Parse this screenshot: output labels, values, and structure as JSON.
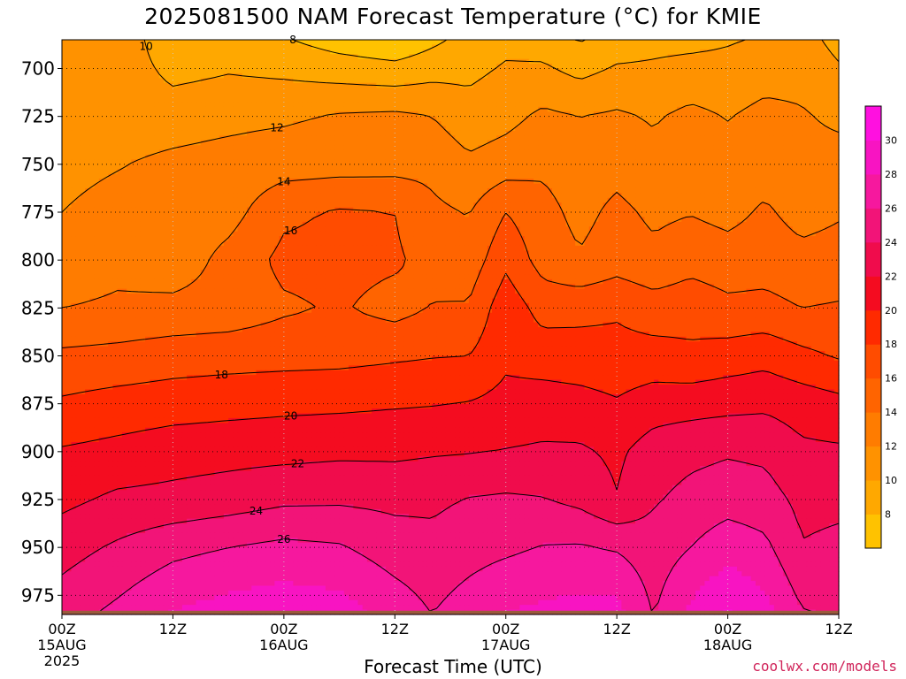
{
  "title": "2025081500 NAM Forecast Temperature (°C) for KMIE",
  "credit": "coolwx.com/models",
  "chart_data": {
    "type": "heatmap",
    "title": "2025081500 NAM Forecast Temperature (°C) for KMIE",
    "xlabel": "Forecast Time (UTC)",
    "ylabel": "",
    "x_unit": "forecast hour",
    "xlim": [
      0,
      84
    ],
    "ylim": [
      985,
      685
    ],
    "y_scale": "pressure (inverted)",
    "y_ticks": [
      700,
      725,
      750,
      775,
      800,
      825,
      850,
      875,
      900,
      925,
      950,
      975
    ],
    "x_ticks": [
      {
        "hour": 0,
        "label": "00Z",
        "date": "15AUG",
        "year": "2025"
      },
      {
        "hour": 12,
        "label": "12Z",
        "date": "",
        "year": ""
      },
      {
        "hour": 24,
        "label": "00Z",
        "date": "16AUG",
        "year": ""
      },
      {
        "hour": 36,
        "label": "12Z",
        "date": "",
        "year": ""
      },
      {
        "hour": 48,
        "label": "00Z",
        "date": "17AUG",
        "year": ""
      },
      {
        "hour": 60,
        "label": "12Z",
        "date": "",
        "year": ""
      },
      {
        "hour": 72,
        "label": "00Z",
        "date": "18AUG",
        "year": ""
      },
      {
        "hour": 84,
        "label": "12Z",
        "date": "",
        "year": ""
      }
    ],
    "grid": true,
    "colorbar": {
      "levels": [
        6,
        8,
        10,
        12,
        14,
        16,
        18,
        20,
        22,
        24,
        26,
        28,
        30,
        32
      ],
      "labels": [
        8,
        10,
        12,
        14,
        16,
        18,
        20,
        22,
        24,
        26,
        28,
        30
      ],
      "colors": [
        "#ffc200",
        "#ffa800",
        "#ff9200",
        "#ff7c00",
        "#ff6400",
        "#ff4c00",
        "#ff2a00",
        "#f40c20",
        "#f00c4c",
        "#f21478",
        "#f6189e",
        "#f814c2",
        "#ff10e0"
      ]
    },
    "ground_color": "#9c5a3c",
    "surface_pressure": [
      983,
      983,
      983,
      983,
      983,
      983,
      983,
      983,
      983,
      983,
      983,
      983,
      983,
      983,
      983,
      983,
      983,
      983,
      983,
      983,
      983,
      983,
      983,
      983,
      983,
      983,
      983,
      983,
      983,
      983,
      983,
      983,
      983,
      983,
      983,
      983,
      983,
      983,
      983,
      983,
      983,
      983,
      983,
      983,
      983,
      983,
      983,
      983,
      983,
      983,
      983,
      983,
      983,
      983,
      983,
      983,
      983,
      983,
      983,
      983,
      983,
      983,
      983,
      983,
      983,
      983,
      983,
      983,
      983,
      983,
      983,
      983,
      983,
      983,
      983,
      983,
      983,
      983,
      983,
      983,
      983,
      983,
      983,
      983,
      983
    ],
    "series": [
      {
        "pressure": 700,
        "x": [
          0,
          6,
          12,
          18,
          24,
          30,
          36,
          40,
          44,
          48,
          52,
          56,
          60,
          64,
          68,
          72,
          76,
          80,
          84
        ],
        "values": [
          10.6,
          11.5,
          9.3,
          9.8,
          9.5,
          9.0,
          8.6,
          9.2,
          9.5,
          10.2,
          10.3,
          9.4,
          10.2,
          10.3,
          10.6,
          10.6,
          11.1,
          11.3,
          10.2
        ]
      },
      {
        "pressure": 725,
        "x": [
          0,
          6,
          12,
          18,
          24,
          30,
          36,
          40,
          44,
          48,
          52,
          56,
          60,
          64,
          68,
          72,
          76,
          80,
          84
        ],
        "values": [
          11.0,
          11.1,
          11.2,
          11.5,
          11.7,
          12.2,
          12.4,
          12.0,
          10.8,
          11.4,
          12.4,
          12.0,
          12.3,
          11.8,
          12.5,
          11.9,
          12.6,
          12.2,
          11.6
        ]
      },
      {
        "pressure": 750,
        "x": [
          0,
          6,
          12,
          18,
          24,
          30,
          36,
          40,
          44,
          48,
          52,
          56,
          60,
          64,
          68,
          72,
          76,
          80,
          84
        ],
        "values": [
          11.5,
          11.9,
          12.4,
          12.7,
          13.1,
          13.2,
          13.3,
          13.5,
          12.4,
          13.0,
          13.6,
          12.9,
          13.3,
          12.6,
          13.4,
          12.9,
          13.1,
          12.6,
          12.8
        ]
      },
      {
        "pressure": 775,
        "x": [
          0,
          6,
          12,
          18,
          24,
          30,
          36,
          40,
          44,
          48,
          52,
          56,
          60,
          64,
          68,
          72,
          76,
          80,
          84
        ],
        "values": [
          12.0,
          12.6,
          12.6,
          13.2,
          15.6,
          16.2,
          16.0,
          14.4,
          13.9,
          16.0,
          14.7,
          13.4,
          14.5,
          13.6,
          13.9,
          13.4,
          14.3,
          13.3,
          13.8
        ]
      },
      {
        "pressure": 800,
        "x": [
          0,
          6,
          12,
          18,
          24,
          30,
          36,
          40,
          44,
          48,
          52,
          56,
          60,
          64,
          68,
          72,
          76,
          80,
          84
        ],
        "values": [
          12.4,
          13.3,
          12.7,
          14.7,
          16.5,
          16.6,
          16.3,
          15.3,
          14.8,
          17.5,
          15.2,
          14.2,
          15.1,
          14.5,
          15.3,
          14.9,
          15.1,
          14.6,
          14.8
        ]
      },
      {
        "pressure": 825,
        "x": [
          0,
          6,
          12,
          18,
          24,
          30,
          36,
          40,
          44,
          48,
          52,
          56,
          60,
          64,
          68,
          72,
          76,
          80,
          84
        ],
        "values": [
          14.0,
          14.4,
          14.6,
          14.8,
          15.7,
          16.2,
          15.3,
          16.1,
          16.2,
          19.3,
          17.2,
          17.4,
          17.7,
          16.9,
          17.2,
          16.5,
          16.6,
          16.0,
          16.2
        ]
      },
      {
        "pressure": 850,
        "x": [
          0,
          6,
          12,
          18,
          24,
          30,
          36,
          40,
          44,
          48,
          52,
          56,
          60,
          64,
          68,
          72,
          76,
          80,
          84
        ],
        "values": [
          16.4,
          16.6,
          17.0,
          17.2,
          17.3,
          17.4,
          17.7,
          17.9,
          18.0,
          19.6,
          19.1,
          18.9,
          18.7,
          18.8,
          18.4,
          18.9,
          19.3,
          18.5,
          17.8
        ]
      },
      {
        "pressure": 875,
        "x": [
          0,
          6,
          12,
          18,
          24,
          30,
          36,
          40,
          44,
          48,
          52,
          56,
          60,
          64,
          68,
          72,
          76,
          80,
          84
        ],
        "values": [
          18.3,
          18.8,
          19.1,
          19.3,
          19.5,
          19.6,
          19.8,
          19.9,
          20.1,
          20.6,
          20.9,
          20.7,
          20.2,
          21.0,
          21.2,
          21.4,
          21.6,
          21.1,
          20.6
        ]
      },
      {
        "pressure": 900,
        "x": [
          0,
          6,
          12,
          18,
          24,
          30,
          36,
          40,
          44,
          48,
          52,
          56,
          60,
          64,
          68,
          72,
          76,
          80,
          84
        ],
        "values": [
          20.2,
          20.6,
          21.1,
          21.3,
          21.4,
          21.6,
          21.6,
          21.8,
          21.9,
          22.1,
          22.3,
          22.3,
          21.6,
          23.0,
          23.5,
          23.8,
          23.6,
          22.4,
          22.3
        ]
      },
      {
        "pressure": 925,
        "x": [
          0,
          6,
          12,
          18,
          24,
          30,
          36,
          40,
          44,
          48,
          52,
          56,
          60,
          64,
          68,
          72,
          76,
          80,
          84
        ],
        "values": [
          21.5,
          22.4,
          22.6,
          23.0,
          23.6,
          23.7,
          23.5,
          23.6,
          24.1,
          24.3,
          24.1,
          23.5,
          22.1,
          23.8,
          24.6,
          25.1,
          24.8,
          23.5,
          23.6
        ]
      },
      {
        "pressure": 950,
        "x": [
          0,
          6,
          12,
          18,
          24,
          30,
          36,
          40,
          44,
          48,
          52,
          56,
          60,
          64,
          68,
          72,
          76,
          80,
          84
        ],
        "values": [
          23.2,
          24.3,
          25.4,
          26.0,
          26.5,
          26.2,
          25.0,
          24.6,
          25.2,
          25.6,
          26.1,
          26.2,
          25.8,
          24.9,
          26.0,
          27.3,
          26.5,
          24.1,
          24.4
        ]
      },
      {
        "pressure": 975,
        "x": [
          0,
          6,
          12,
          18,
          24,
          30,
          36,
          40,
          44,
          48,
          52,
          56,
          60,
          64,
          68,
          72,
          76,
          80,
          84
        ],
        "values": [
          24.6,
          25.9,
          27.4,
          28.1,
          28.6,
          28.2,
          26.6,
          25.6,
          26.5,
          27.4,
          27.8,
          28.1,
          27.9,
          25.6,
          27.8,
          29.4,
          28.1,
          25.6,
          25.4
        ]
      }
    ],
    "contour_levels": [
      8,
      10,
      12,
      14,
      16,
      18,
      20,
      22,
      24,
      26
    ]
  }
}
